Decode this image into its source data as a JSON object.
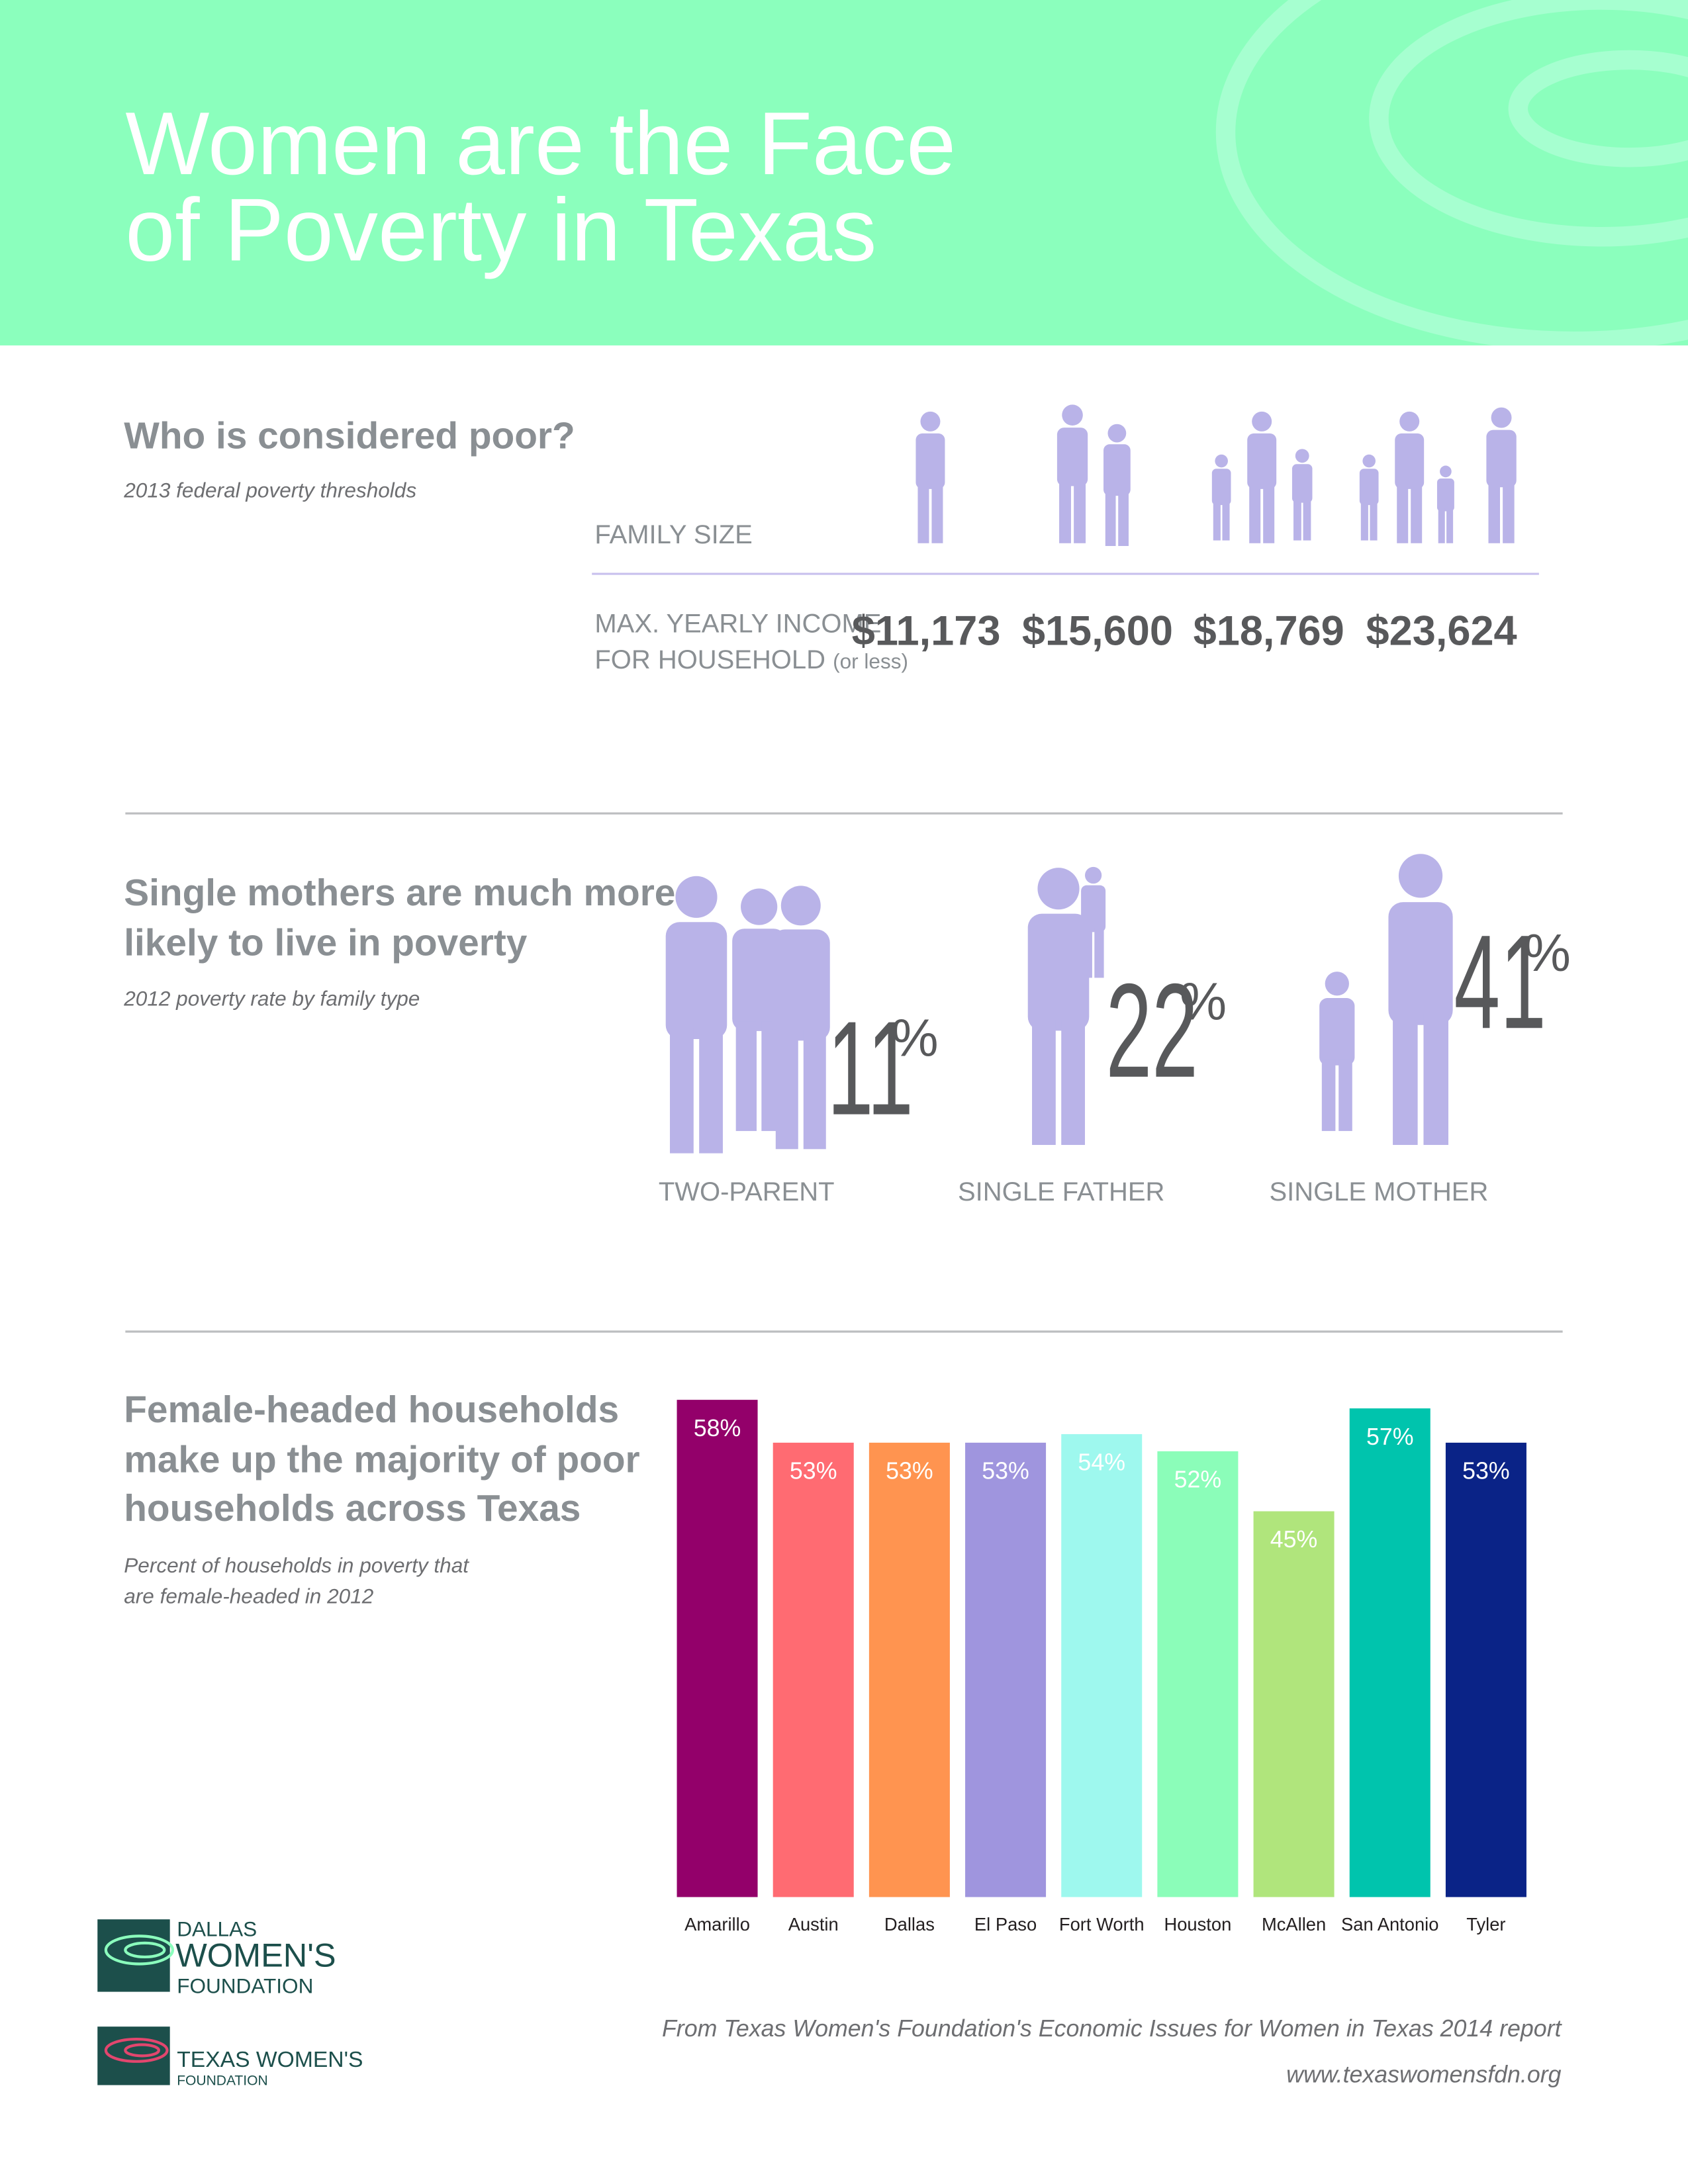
{
  "header": {
    "title": [
      "Women are the Face",
      "of Poverty in Texas"
    ]
  },
  "thresholds": {
    "title": "Who is considered poor?",
    "subtitle": "2013 federal poverty thresholds",
    "family_size_label": "FAMILY SIZE",
    "income_label": [
      "MAX. YEARLY INCOME",
      "FOR HOUSEHOLD"
    ],
    "income_note": "(or less)",
    "incomes": [
      "$11,173",
      "$15,600",
      "$18,769",
      "$23,624"
    ]
  },
  "family_types": {
    "title": [
      "Single mothers are much more",
      "likely to live in poverty"
    ],
    "subtitle": "2012 poverty rate by family type",
    "unit": "%",
    "items": [
      {
        "label": "TWO-PARENT",
        "value": 11
      },
      {
        "label": "SINGLE FATHER",
        "value": 22
      },
      {
        "label": "SINGLE MOTHER",
        "value": 41
      }
    ]
  },
  "chart_data": {
    "type": "bar",
    "title": [
      "Female-headed households",
      "make up the majority of poor",
      "households across Texas"
    ],
    "subtitle": [
      "Percent of households in poverty that",
      "are female-headed in 2012"
    ],
    "categories": [
      "Amarillo",
      "Austin",
      "Dallas",
      "El Paso",
      "Fort Worth",
      "Houston",
      "McAllen",
      "San Antonio",
      "Tyler"
    ],
    "values": [
      58,
      53,
      53,
      53,
      54,
      52,
      45,
      57,
      53
    ],
    "value_labels": [
      "58%",
      "53%",
      "53%",
      "53%",
      "54%",
      "52%",
      "45%",
      "57%",
      "53%"
    ],
    "colors": [
      "#93006a",
      "#ff6b72",
      "#ff9450",
      "#9f95de",
      "#9ef8ee",
      "#8bfdb9",
      "#b0e57c",
      "#00c4ad",
      "#0a2387"
    ]
  },
  "logos": {
    "dallas": [
      "DALLAS",
      "WOMEN'S",
      "FOUNDATION"
    ],
    "texas": [
      "TEXAS WOMEN'S",
      "FOUNDATION"
    ]
  },
  "footer": {
    "source": "From Texas Women's Foundation's Economic Issues for Women in Texas 2014 report",
    "url": "www.texaswomensfdn.org"
  }
}
